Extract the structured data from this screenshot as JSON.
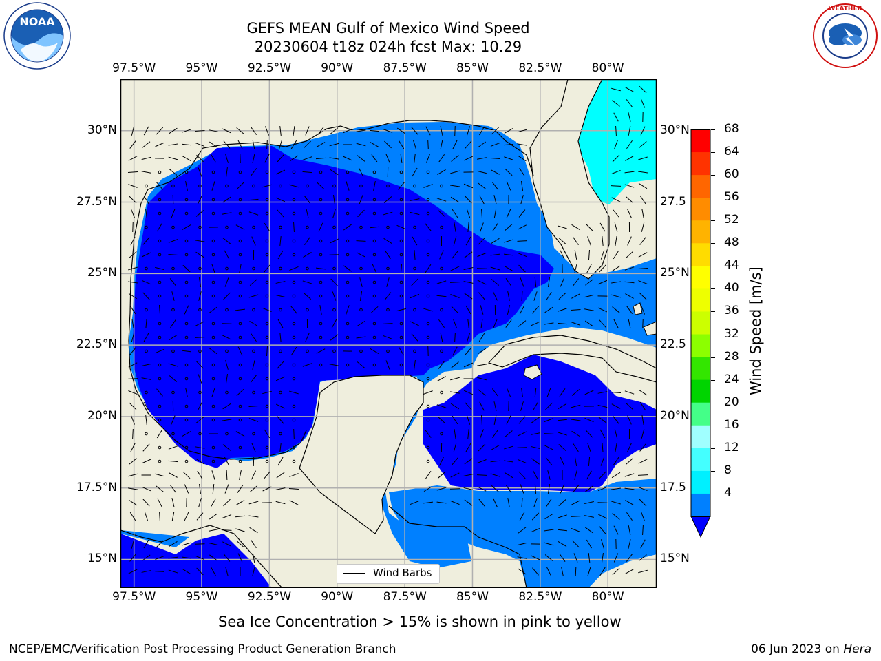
{
  "header": {
    "title_line1": "GEFS MEAN Gulf of Mexico Wind Speed",
    "title_line2": "20230604 t18z 024h fcst   Max: 10.29"
  },
  "logos": {
    "noaa": {
      "center_text": "NOAA",
      "ring_text": "NATIONAL OCEANIC AND ATMOSPHERIC ADMINISTRATION · U.S. DEPARTMENT OF COMMERCE"
    },
    "nws": {
      "ring_text": "NATIONAL WEATHER SERVICE"
    }
  },
  "map": {
    "lon_labels": [
      "97.5°W",
      "95°W",
      "92.5°W",
      "90°W",
      "87.5°W",
      "85°W",
      "82.5°W",
      "80°W"
    ],
    "lat_labels": [
      "30°N",
      "27.5°N",
      "25°N",
      "22.5°N",
      "20°N",
      "17.5°N",
      "15°N"
    ],
    "lat_labels_right": [
      "30°N",
      "27.5",
      "25°N",
      "22.5",
      "20°N",
      "17.5",
      "15°N"
    ],
    "lon_range": [
      -98.0,
      -78.2
    ],
    "lat_range": [
      14.0,
      31.8
    ],
    "land_color": "#efeedd",
    "grid_color": "#b0b0b0",
    "legend_label": "Wind Barbs"
  },
  "colorbar": {
    "label": "Wind Speed [m/s]",
    "ticks": [
      "68",
      "64",
      "60",
      "56",
      "52",
      "48",
      "44",
      "40",
      "36",
      "32",
      "28",
      "24",
      "20",
      "16",
      "12",
      "8",
      "4"
    ],
    "colors": [
      "#ff0000",
      "#ff3300",
      "#ff6600",
      "#ff8c00",
      "#ffb300",
      "#ffdc00",
      "#ffff00",
      "#eeff00",
      "#ccff00",
      "#8cff00",
      "#33e600",
      "#00d400",
      "#44ff88",
      "#a0ffff",
      "#44ffff",
      "#00f0ff",
      "#0080ff"
    ],
    "under_color": "#0000ff"
  },
  "wind_speed_colors": {
    "lt4": "#0000ff",
    "4to8": "#0080ff",
    "8to12": "#00ffff"
  },
  "note": "Sea Ice Concentration > 15% is shown in pink to yellow",
  "footer": {
    "left": "NCEP/EMC/Verification Post Processing Product Generation Branch",
    "date": "06 Jun 2023 on ",
    "machine": "Hera"
  }
}
